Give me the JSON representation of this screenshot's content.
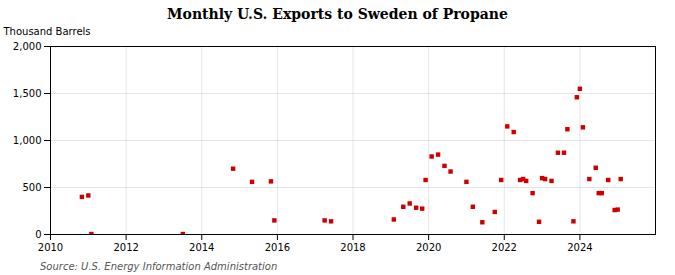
{
  "chart_data": {
    "type": "scatter",
    "title": "Monthly U.S. Exports to Sweden of Propane",
    "ylabel": "Thousand Barrels",
    "source": "Source: U.S. Energy Information Administration",
    "color": "#cc0000",
    "marker": "square",
    "grid": true,
    "xlim": [
      2010,
      2026
    ],
    "ylim": [
      0,
      2000
    ],
    "xticks": [
      2010,
      2012,
      2014,
      2016,
      2018,
      2020,
      2022,
      2024
    ],
    "yticks": [
      0,
      500,
      {
        "value": 1000,
        "label": "1,000"
      },
      {
        "value": 1500,
        "label": "1,500"
      },
      {
        "value": 2000,
        "label": "2,000"
      }
    ],
    "x": [
      2010.83,
      2011.0,
      2011.08,
      2013.5,
      2014.83,
      2015.33,
      2015.83,
      2015.92,
      2017.25,
      2017.42,
      2019.08,
      2019.33,
      2019.5,
      2019.67,
      2019.83,
      2019.92,
      2020.08,
      2020.25,
      2020.42,
      2020.58,
      2021.0,
      2021.17,
      2021.42,
      2021.75,
      2021.92,
      2022.08,
      2022.25,
      2022.42,
      2022.5,
      2022.58,
      2022.75,
      2022.92,
      2023.0,
      2023.08,
      2023.25,
      2023.42,
      2023.58,
      2023.67,
      2023.83,
      2023.92,
      2024.0,
      2024.08,
      2024.25,
      2024.42,
      2024.5,
      2024.58,
      2024.75,
      2024.92,
      2025.0,
      2025.08
    ],
    "values": [
      400,
      415,
      5,
      5,
      700,
      560,
      565,
      150,
      150,
      140,
      160,
      295,
      330,
      285,
      275,
      580,
      830,
      850,
      730,
      670,
      560,
      295,
      130,
      240,
      580,
      1150,
      1090,
      580,
      590,
      570,
      440,
      135,
      600,
      590,
      570,
      870,
      870,
      1120,
      140,
      1460,
      1550,
      1140,
      590,
      710,
      440,
      440,
      580,
      260,
      265,
      590
    ]
  }
}
